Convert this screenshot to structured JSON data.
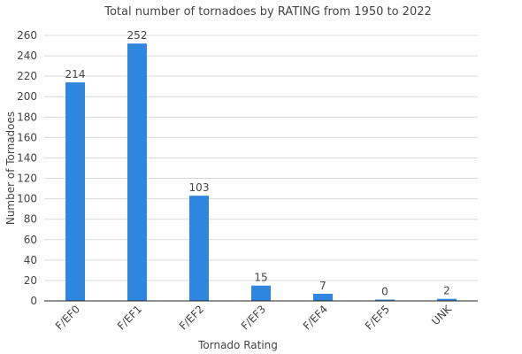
{
  "chart_data": {
    "type": "bar",
    "title": "Total number of tornadoes by RATING from 1950 to 2022",
    "xlabel": "Tornado Rating",
    "ylabel": "Number of Tornadoes",
    "categories": [
      "F/EF0",
      "F/EF1",
      "F/EF2",
      "F/EF3",
      "F/EF4",
      "F/EF5",
      "UNK"
    ],
    "values": [
      214,
      252,
      103,
      15,
      7,
      0,
      2
    ],
    "data_labels": [
      "214",
      "252",
      "103",
      "15",
      "7",
      "0",
      "2"
    ],
    "ylim": [
      0,
      260
    ],
    "yticks": [
      0,
      20,
      40,
      60,
      80,
      100,
      120,
      140,
      160,
      180,
      200,
      220,
      240,
      260
    ],
    "grid": true,
    "legend": "none",
    "bar_color": "#2e86de"
  }
}
